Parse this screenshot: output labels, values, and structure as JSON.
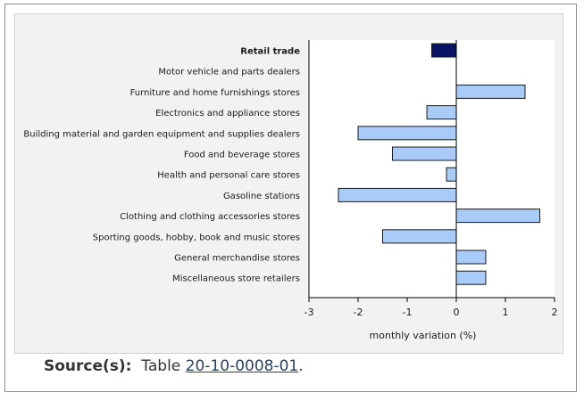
{
  "chart_data": {
    "type": "bar",
    "orientation": "horizontal",
    "categories": [
      "Retail trade",
      "Motor vehicle and parts dealers",
      "Furniture and home furnishings stores",
      "Electronics and appliance stores",
      "Building material and garden equipment and supplies dealers",
      "Food and beverage stores",
      "Health and personal care stores",
      "Gasoline stations",
      "Clothing and clothing accessories stores",
      "Sporting goods, hobby, book and music stores",
      "General merchandise stores",
      "Miscellaneous store retailers"
    ],
    "values": [
      -0.5,
      0.0,
      1.4,
      -0.6,
      -2.0,
      -1.3,
      -0.2,
      -2.4,
      1.7,
      -1.5,
      0.6,
      0.6
    ],
    "highlight_category": "Retail trade",
    "xlabel": "monthly variation (%)",
    "xlim": [
      -3,
      2
    ],
    "xticks": [
      "-3",
      "-2",
      "-1",
      "0",
      "1",
      "2"
    ],
    "grid": false,
    "colors": {
      "highlight": "#0a1465",
      "bar": "#a9cbf7",
      "bar_stroke": "#1a1a1a"
    }
  },
  "source": {
    "label": "Source(s):",
    "text": "Table",
    "link": "20-10-0008-01",
    "end": "."
  }
}
